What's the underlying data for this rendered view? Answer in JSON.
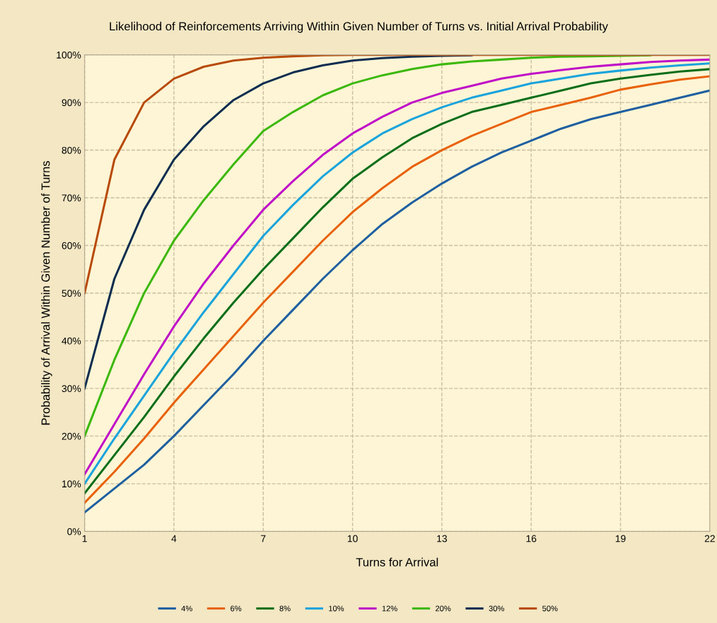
{
  "chart_data": {
    "type": "line",
    "title": "Likelihood of Reinforcements Arriving Within Given Number of Turns vs. Initial Arrival Probability",
    "xlabel": "Turns for Arrival",
    "ylabel": "Probability of Arrival Within Given Number of Turns",
    "x": [
      1,
      2,
      3,
      4,
      5,
      6,
      7,
      8,
      9,
      10,
      11,
      12,
      13,
      14,
      15,
      16,
      17,
      18,
      19,
      20,
      21,
      22
    ],
    "series": [
      {
        "name": "4%",
        "color": "#1f5fa0",
        "values": [
          4,
          9,
          14,
          20,
          26.5,
          33,
          40,
          46.5,
          53,
          59,
          64.5,
          69,
          73,
          76.5,
          79.5,
          82,
          84.5,
          86.5,
          88,
          89.5,
          91,
          92.5
        ]
      },
      {
        "name": "6%",
        "color": "#e8620c",
        "values": [
          6,
          12.5,
          19.5,
          27,
          34,
          41,
          48,
          54.5,
          61,
          67,
          72,
          76.5,
          80,
          83,
          85.5,
          88,
          89.5,
          91,
          92.7,
          93.8,
          94.8,
          95.5
        ]
      },
      {
        "name": "8%",
        "color": "#0b6e1a",
        "values": [
          8,
          16,
          24,
          32.5,
          40.5,
          48,
          55,
          61.5,
          68,
          74,
          78.5,
          82.5,
          85.5,
          88,
          89.5,
          91,
          92.5,
          94,
          95,
          95.8,
          96.5,
          97
        ]
      },
      {
        "name": "10%",
        "color": "#1aa3dc",
        "values": [
          10,
          19.5,
          28.5,
          37.5,
          46,
          54,
          62,
          68.5,
          74.5,
          79.5,
          83.5,
          86.5,
          89,
          91,
          92.5,
          94,
          95,
          96,
          96.7,
          97.3,
          97.8,
          98.2
        ]
      },
      {
        "name": "12%",
        "color": "#c010c8",
        "values": [
          12,
          22.5,
          33,
          43,
          52,
          60,
          67.5,
          73.5,
          79,
          83.5,
          87,
          90,
          92,
          93.5,
          95,
          96,
          96.8,
          97.5,
          98,
          98.5,
          98.8,
          99
        ]
      },
      {
        "name": "20%",
        "color": "#3cb80c",
        "values": [
          20,
          36,
          50,
          61,
          69.5,
          77,
          84,
          88,
          91.5,
          94,
          95.7,
          97,
          98,
          98.6,
          99,
          99.4,
          99.6,
          99.7,
          99.8,
          99.9,
          null,
          null
        ]
      },
      {
        "name": "30%",
        "color": "#0d2d50",
        "values": [
          30,
          53,
          67.5,
          78,
          85,
          90.5,
          94,
          96.3,
          97.8,
          98.8,
          99.3,
          99.6,
          99.8,
          99.9,
          null,
          null,
          null,
          null,
          null,
          null,
          null,
          null
        ]
      },
      {
        "name": "50%",
        "color": "#b84a0a",
        "values": [
          50,
          78,
          90,
          95,
          97.5,
          98.8,
          99.4,
          99.7,
          99.9,
          100,
          100,
          100,
          100,
          100,
          100,
          100,
          100,
          100,
          100,
          100,
          100,
          100
        ]
      }
    ],
    "xlim": [
      1,
      22
    ],
    "xticks": [
      1,
      4,
      7,
      10,
      13,
      16,
      19,
      22
    ],
    "ylim": [
      0,
      100
    ],
    "yticks": [
      {
        "value": 0,
        "label": "0%"
      },
      {
        "value": 10,
        "label": "10%"
      },
      {
        "value": 20,
        "label": "20%"
      },
      {
        "value": 30,
        "label": "30%"
      },
      {
        "value": 40,
        "label": "40%"
      },
      {
        "value": 50,
        "label": "50%"
      },
      {
        "value": 60,
        "label": "60%"
      },
      {
        "value": 70,
        "label": "70%"
      },
      {
        "value": 80,
        "label": "80%"
      },
      {
        "value": 90,
        "label": "90%"
      },
      {
        "value": 100,
        "label": "100%"
      }
    ],
    "grid": true,
    "legend": "bottom",
    "marker": "none",
    "line_style": "solid"
  }
}
